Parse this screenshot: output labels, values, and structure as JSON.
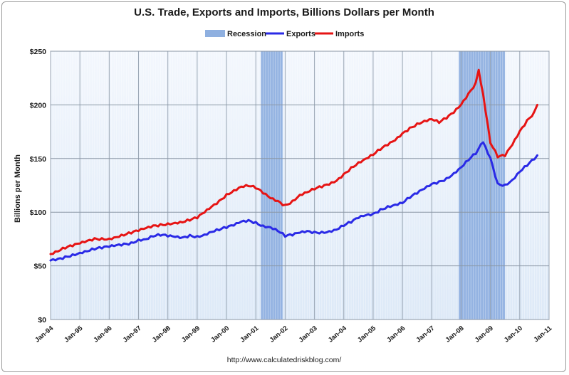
{
  "chart_data": {
    "type": "line",
    "title": "U.S. Trade, Exports and Imports, Billions Dollars per Month",
    "ylabel": "Billions per Month",
    "xlabel": "",
    "source": "http://www.calculatedriskblog.com/",
    "ylim": [
      0,
      250
    ],
    "yticks": [
      0,
      50,
      100,
      150,
      200,
      250
    ],
    "ytick_labels": [
      "$0",
      "$50",
      "$100",
      "$150",
      "$200",
      "$250"
    ],
    "xlim": [
      1994.0,
      2011.0
    ],
    "xticks": [
      1994,
      1995,
      1996,
      1997,
      1998,
      1999,
      2000,
      2001,
      2002,
      2003,
      2004,
      2005,
      2006,
      2007,
      2008,
      2009,
      2010,
      2011
    ],
    "xtick_labels": [
      "Jan-94",
      "Jan-95",
      "Jan-96",
      "Jan-97",
      "Jan-98",
      "Jan-99",
      "Jan-00",
      "Jan-01",
      "Jan-02",
      "Jan-03",
      "Jan-04",
      "Jan-05",
      "Jan-06",
      "Jan-07",
      "Jan-08",
      "Jan-09",
      "Jan-10",
      "Jan-11"
    ],
    "grid": true,
    "legend_position": "top-center",
    "recessions": [
      {
        "start": 2001.17,
        "end": 2001.92
      },
      {
        "start": 2007.92,
        "end": 2009.5
      }
    ],
    "series": [
      {
        "name": "Recession",
        "color": "#8fb0e0",
        "kind": "band"
      },
      {
        "name": "Exports",
        "color": "#2a2ae6",
        "kind": "line",
        "x": [
          1994.0,
          1994.25,
          1994.5,
          1994.75,
          1995.0,
          1995.25,
          1995.5,
          1995.75,
          1996.0,
          1996.25,
          1996.5,
          1996.75,
          1997.0,
          1997.25,
          1997.5,
          1997.75,
          1998.0,
          1998.25,
          1998.5,
          1998.75,
          1999.0,
          1999.25,
          1999.5,
          1999.75,
          2000.0,
          2000.25,
          2000.5,
          2000.75,
          2001.0,
          2001.25,
          2001.5,
          2001.75,
          2002.0,
          2002.25,
          2002.5,
          2002.75,
          2003.0,
          2003.25,
          2003.5,
          2003.75,
          2004.0,
          2004.25,
          2004.5,
          2004.75,
          2005.0,
          2005.25,
          2005.5,
          2005.75,
          2006.0,
          2006.25,
          2006.5,
          2006.75,
          2007.0,
          2007.25,
          2007.5,
          2007.75,
          2008.0,
          2008.25,
          2008.5,
          2008.6,
          2008.75,
          2009.0,
          2009.25,
          2009.5,
          2009.75,
          2010.0,
          2010.25,
          2010.5,
          2010.6
        ],
        "values": [
          55,
          56,
          58,
          60,
          62,
          64,
          66,
          67,
          68,
          69,
          70,
          71,
          74,
          75,
          78,
          79,
          78,
          77,
          76,
          78,
          77,
          79,
          82,
          84,
          86,
          88,
          91,
          92,
          90,
          87,
          86,
          83,
          78,
          79,
          81,
          82,
          81,
          81,
          82,
          84,
          88,
          91,
          95,
          97,
          98,
          102,
          105,
          107,
          109,
          114,
          118,
          122,
          126,
          128,
          131,
          136,
          142,
          149,
          155,
          160,
          165,
          150,
          126,
          125,
          130,
          138,
          144,
          150,
          153
        ]
      },
      {
        "name": "Imports",
        "color": "#e61414",
        "kind": "line",
        "x": [
          1994.0,
          1994.25,
          1994.5,
          1994.75,
          1995.0,
          1995.25,
          1995.5,
          1995.75,
          1996.0,
          1996.25,
          1996.5,
          1996.75,
          1997.0,
          1997.25,
          1997.5,
          1997.75,
          1998.0,
          1998.25,
          1998.5,
          1998.75,
          1999.0,
          1999.25,
          1999.5,
          1999.75,
          2000.0,
          2000.25,
          2000.5,
          2000.75,
          2001.0,
          2001.25,
          2001.5,
          2001.75,
          2002.0,
          2002.25,
          2002.5,
          2002.75,
          2003.0,
          2003.25,
          2003.5,
          2003.75,
          2004.0,
          2004.25,
          2004.5,
          2004.75,
          2005.0,
          2005.25,
          2005.5,
          2005.75,
          2006.0,
          2006.25,
          2006.5,
          2006.75,
          2007.0,
          2007.25,
          2007.5,
          2007.75,
          2008.0,
          2008.25,
          2008.5,
          2008.6,
          2008.75,
          2009.0,
          2009.25,
          2009.5,
          2009.75,
          2010.0,
          2010.25,
          2010.5,
          2010.6
        ],
        "values": [
          61,
          64,
          67,
          69,
          71,
          73,
          75,
          75,
          75,
          77,
          79,
          81,
          83,
          85,
          87,
          88,
          89,
          90,
          91,
          93,
          95,
          100,
          105,
          110,
          116,
          120,
          124,
          125,
          123,
          118,
          113,
          110,
          106,
          110,
          116,
          119,
          122,
          124,
          126,
          129,
          135,
          141,
          146,
          150,
          154,
          159,
          163,
          167,
          173,
          178,
          182,
          185,
          187,
          184,
          188,
          193,
          200,
          210,
          220,
          232,
          210,
          165,
          152,
          153,
          163,
          175,
          185,
          193,
          200
        ]
      }
    ]
  }
}
